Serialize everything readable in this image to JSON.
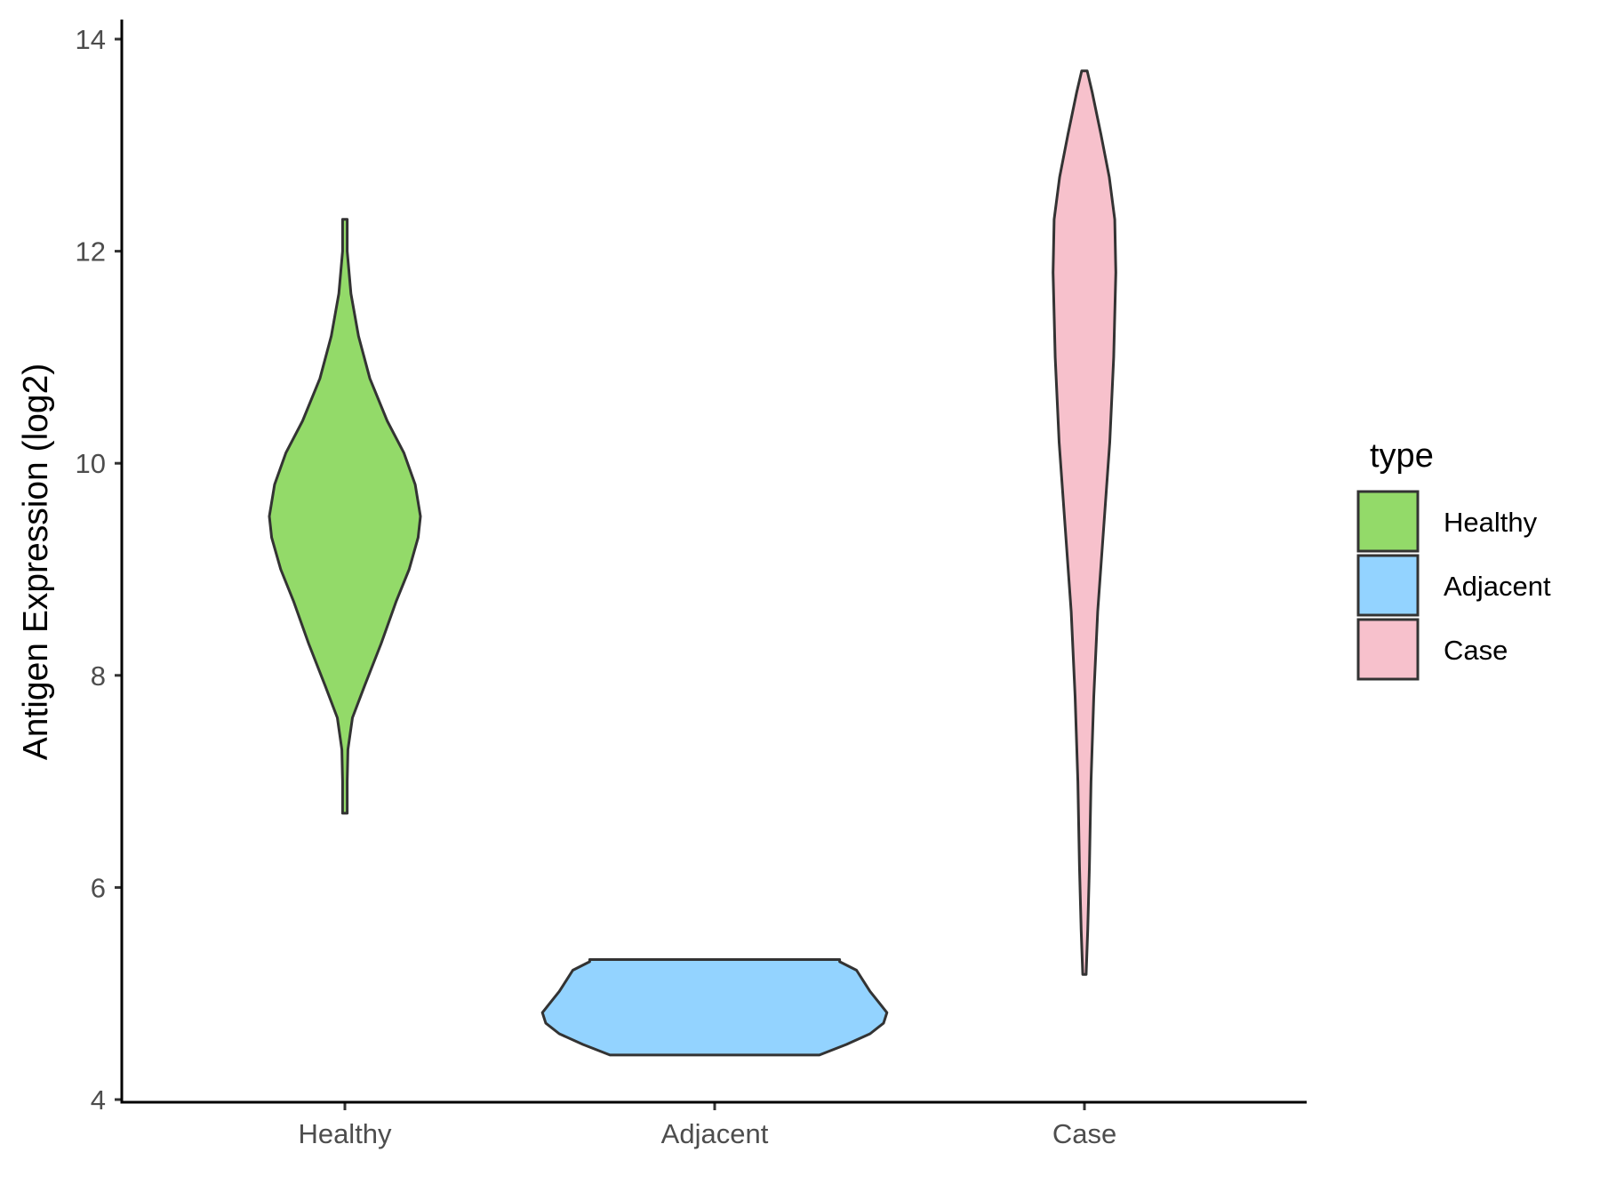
{
  "chart_data": {
    "type": "violin",
    "xlabel": "",
    "ylabel": "Antigen Expression (log2)",
    "ylim": [
      4,
      14
    ],
    "y_ticks": [
      "4",
      "6",
      "8",
      "10",
      "12",
      "14"
    ],
    "categories": [
      "Healthy",
      "Adjacent",
      "Case"
    ],
    "legend": {
      "title": "type",
      "position": "right",
      "items": [
        {
          "label": "Healthy",
          "color": "#93DA69"
        },
        {
          "label": "Adjacent",
          "color": "#93D3FF"
        },
        {
          "label": "Case",
          "color": "#F7C1CC"
        }
      ]
    },
    "grid": false,
    "series": [
      {
        "name": "Healthy",
        "color": "#93DA69",
        "min": 6.7,
        "max": 12.3,
        "profile": [
          [
            6.7,
            0.03
          ],
          [
            7.0,
            0.03
          ],
          [
            7.3,
            0.04
          ],
          [
            7.6,
            0.1
          ],
          [
            7.9,
            0.26
          ],
          [
            8.3,
            0.48
          ],
          [
            8.7,
            0.68
          ],
          [
            9.0,
            0.85
          ],
          [
            9.3,
            0.97
          ],
          [
            9.5,
            1.0
          ],
          [
            9.8,
            0.93
          ],
          [
            10.1,
            0.78
          ],
          [
            10.4,
            0.56
          ],
          [
            10.8,
            0.33
          ],
          [
            11.2,
            0.18
          ],
          [
            11.6,
            0.08
          ],
          [
            12.0,
            0.03
          ],
          [
            12.3,
            0.03
          ]
        ]
      },
      {
        "name": "Adjacent",
        "color": "#93D3FF",
        "min": 4.42,
        "max": 5.32,
        "profile": [
          [
            4.42,
            0.62
          ],
          [
            4.52,
            0.78
          ],
          [
            4.62,
            0.92
          ],
          [
            4.72,
            1.0
          ],
          [
            4.82,
            1.02
          ],
          [
            4.92,
            0.97
          ],
          [
            5.02,
            0.92
          ],
          [
            5.12,
            0.88
          ],
          [
            5.22,
            0.84
          ],
          [
            5.3,
            0.74
          ],
          [
            5.32,
            0.74
          ]
        ]
      },
      {
        "name": "Case",
        "color": "#F7C1CC",
        "min": 5.18,
        "max": 13.7,
        "profile": [
          [
            5.18,
            0.03
          ],
          [
            5.6,
            0.06
          ],
          [
            6.2,
            0.09
          ],
          [
            7.0,
            0.12
          ],
          [
            7.8,
            0.17
          ],
          [
            8.6,
            0.24
          ],
          [
            9.4,
            0.35
          ],
          [
            10.2,
            0.46
          ],
          [
            11.0,
            0.53
          ],
          [
            11.8,
            0.57
          ],
          [
            12.3,
            0.55
          ],
          [
            12.7,
            0.45
          ],
          [
            13.1,
            0.3
          ],
          [
            13.5,
            0.14
          ],
          [
            13.7,
            0.05
          ]
        ]
      }
    ]
  }
}
